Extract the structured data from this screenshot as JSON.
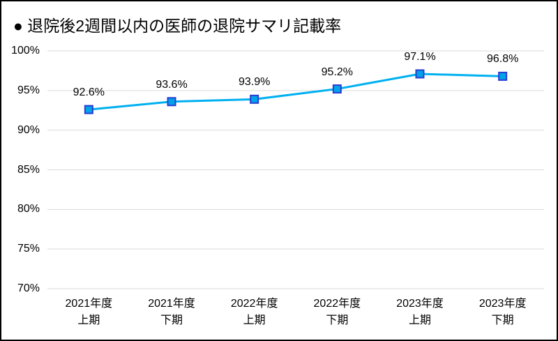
{
  "chart_data": {
    "type": "line",
    "title": "● 退院後2週間以内の医師の退院サマリ記載率",
    "categories": [
      "2021年度\n上期",
      "2021年度\n下期",
      "2022年度\n上期",
      "2022年度\n下期",
      "2023年度\n上期",
      "2023年度\n下期"
    ],
    "values": [
      92.6,
      93.6,
      93.9,
      95.2,
      97.1,
      96.8
    ],
    "data_labels": [
      "92.6%",
      "93.6%",
      "93.9%",
      "95.2%",
      "97.1%",
      "96.8%"
    ],
    "ylim": [
      70,
      100
    ],
    "ytick_values": [
      100,
      95,
      90,
      85,
      80,
      75,
      70
    ],
    "ytick_labels": [
      "100%",
      "95%",
      "90%",
      "85%",
      "80%",
      "75%",
      "70%"
    ],
    "grid": "horizontal",
    "legend": "none",
    "marker_shape": "square",
    "colors": {
      "line": "#00B0F0",
      "marker_fill": "#00A2E8",
      "marker_border": "#2A3CD2",
      "gridline": "#D9D9D9",
      "text": "#000000",
      "frame_border": "#000000",
      "background": "#FFFFFF"
    }
  }
}
